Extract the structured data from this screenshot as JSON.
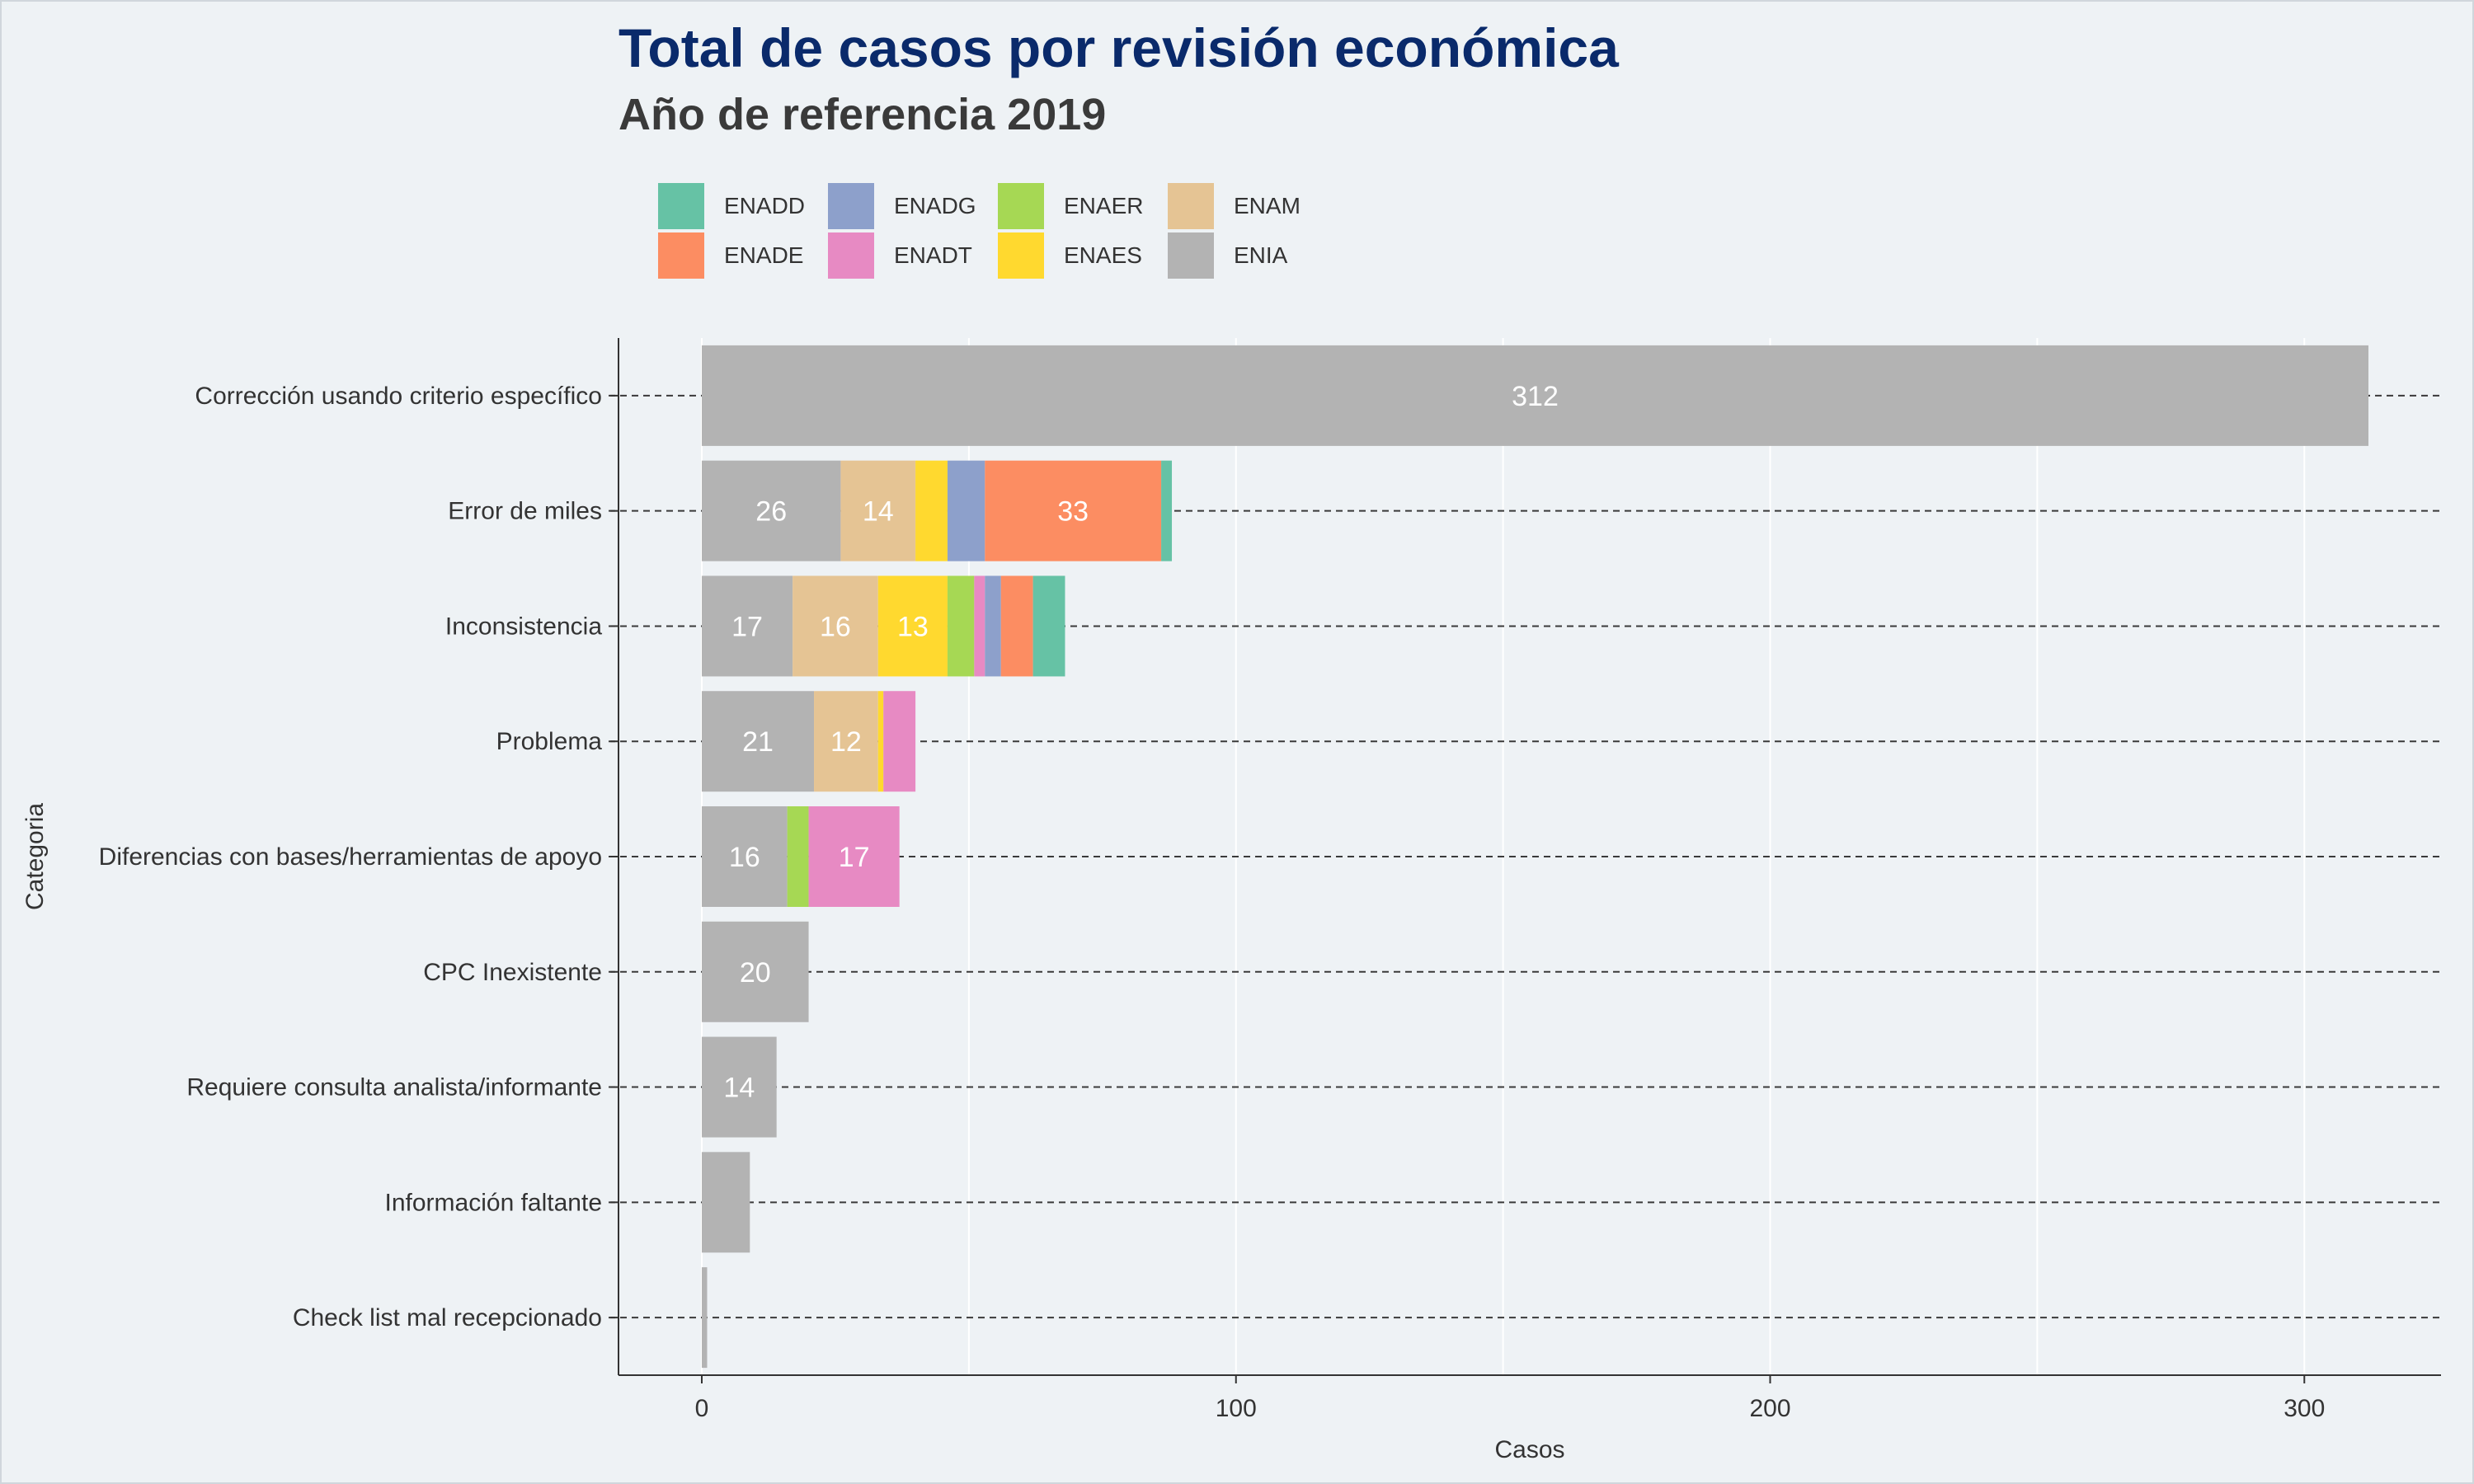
{
  "title": "Total de casos por revisión económica",
  "subtitle": "Año de referencia 2019",
  "chart_data": {
    "type": "bar",
    "orientation": "horizontal",
    "stacked": true,
    "xlabel": "Casos",
    "ylabel": "Categoria",
    "xlim": [
      -15,
      327
    ],
    "xticks": [
      0,
      100,
      200,
      300
    ],
    "grid": true,
    "legend_position": "top",
    "categories": [
      "Corrección usando criterio específico",
      "Error de miles",
      "Inconsistencia",
      "Problema",
      "Diferencias con bases/herramientas de apoyo",
      "CPC Inexistente",
      "Requiere consulta analista/informante",
      "Información faltante",
      "Check list mal recepcionado"
    ],
    "series": [
      {
        "name": "ENIA",
        "color": "#b3b3b3",
        "values": [
          312,
          26,
          17,
          21,
          16,
          20,
          14,
          9,
          1
        ]
      },
      {
        "name": "ENAM",
        "color": "#e5c494",
        "values": [
          0,
          14,
          16,
          12,
          0,
          0,
          0,
          0,
          0
        ]
      },
      {
        "name": "ENAES",
        "color": "#ffd92f",
        "values": [
          0,
          6,
          13,
          1,
          0,
          0,
          0,
          0,
          0
        ]
      },
      {
        "name": "ENAER",
        "color": "#a6d854",
        "values": [
          0,
          0,
          5,
          0,
          4,
          0,
          0,
          0,
          0
        ]
      },
      {
        "name": "ENADT",
        "color": "#e78ac3",
        "values": [
          0,
          0,
          2,
          6,
          17,
          0,
          0,
          0,
          0
        ]
      },
      {
        "name": "ENADG",
        "color": "#8da0cb",
        "values": [
          0,
          7,
          3,
          0,
          0,
          0,
          0,
          0,
          0
        ]
      },
      {
        "name": "ENADE",
        "color": "#fc8d62",
        "values": [
          0,
          33,
          6,
          0,
          0,
          0,
          0,
          0,
          0
        ]
      },
      {
        "name": "ENADD",
        "color": "#66c2a5",
        "values": [
          0,
          2,
          6,
          0,
          0,
          0,
          0,
          0,
          0
        ]
      }
    ],
    "data_labels_min_value": 12,
    "legend_order": [
      "ENADD",
      "ENADE",
      "ENADG",
      "ENADT",
      "ENAER",
      "ENAES",
      "ENAM",
      "ENIA"
    ]
  }
}
